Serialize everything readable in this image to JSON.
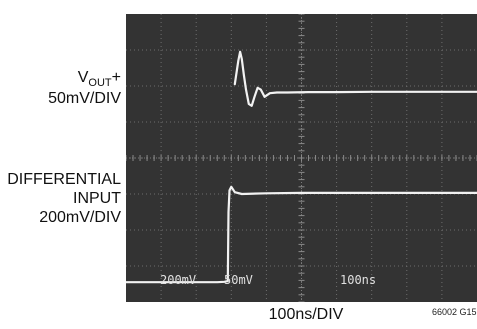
{
  "figure": {
    "id": "66002 G15"
  },
  "chart_data": {
    "type": "line",
    "title": "",
    "xlabel": "100ns/DIV",
    "grid": true,
    "grid_divisions": {
      "x": 10,
      "y": 8
    },
    "screen_readout": {
      "ch1": "200mV",
      "ch2": "50mV",
      "timebase": "100ns"
    },
    "xlim_div": [
      0,
      10
    ],
    "ylim_div": [
      0,
      8
    ],
    "series": [
      {
        "name": "V_OUT+",
        "label_main": "V",
        "label_sub": "OUT",
        "label_suffix": "+",
        "scale": "50mV/DIV",
        "color": "#f2f2f2",
        "x_div": [
          3.1,
          3.2,
          3.25,
          3.3,
          3.36,
          3.42,
          3.5,
          3.58,
          3.66,
          3.75,
          3.84,
          3.95,
          4.1,
          4.3,
          4.6,
          5.2,
          6.0,
          7.0,
          8.0,
          9.0,
          10.0
        ],
        "y_div": [
          6.05,
          6.7,
          6.95,
          6.75,
          6.3,
          5.9,
          5.5,
          5.45,
          5.7,
          5.95,
          5.9,
          5.7,
          5.8,
          5.82,
          5.82,
          5.83,
          5.83,
          5.84,
          5.84,
          5.84,
          5.84
        ]
      },
      {
        "name": "DIFFERENTIAL INPUT",
        "label_lines": [
          "DIFFERENTIAL",
          "INPUT",
          "200mV/DIV"
        ],
        "scale": "200mV/DIV",
        "color": "#f2f2f2",
        "x_div": [
          0.0,
          1.0,
          2.0,
          2.6,
          2.8,
          2.9,
          2.92,
          2.95,
          3.0,
          3.1,
          3.3,
          4.0,
          5.0,
          6.0,
          7.0,
          8.0,
          9.0,
          10.0
        ],
        "y_div": [
          0.55,
          0.55,
          0.55,
          0.55,
          0.56,
          0.58,
          2.5,
          3.1,
          3.2,
          3.05,
          3.0,
          3.02,
          3.03,
          3.03,
          3.03,
          3.03,
          3.03,
          3.03
        ]
      }
    ]
  }
}
